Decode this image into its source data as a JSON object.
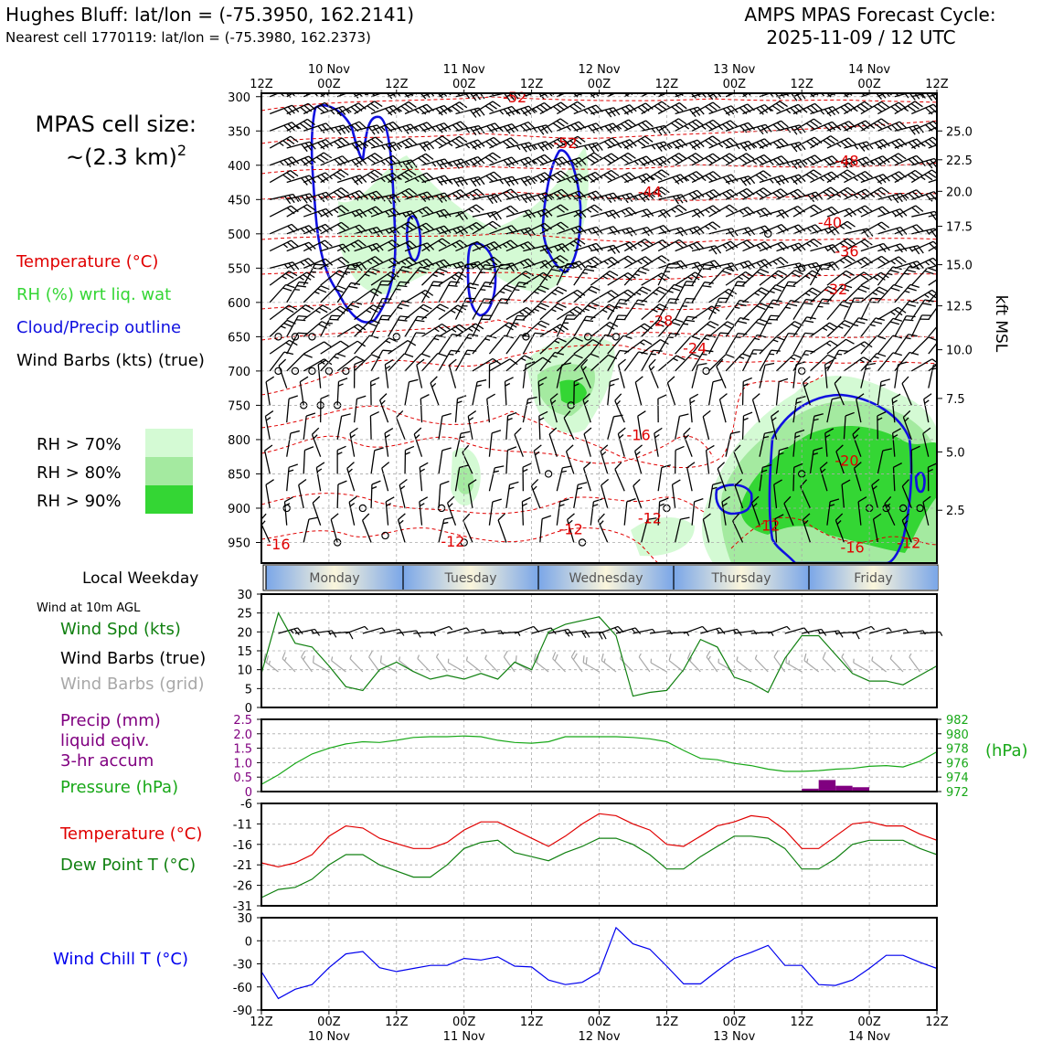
{
  "header": {
    "station_line": "Hughes Bluff: lat/lon = (-75.3950, 162.2141)",
    "cell_line": "Nearest cell 1770119: lat/lon = (-75.3980, 162.2373)",
    "forecast_title": "AMPS MPAS Forecast Cycle:",
    "forecast_time": "2025-11-09 / 12 UTC"
  },
  "sidebar": {
    "cell_size_label": "MPAS cell size:",
    "cell_size_value": "~(2.3 km)",
    "cell_size_exp": "2",
    "legend_temperature": "Temperature (°C)",
    "legend_rh": "RH (%) wrt liq. wat",
    "legend_cloud": "Cloud/Precip outline",
    "legend_wind": "Wind Barbs (kts) (true)",
    "rh_70": "RH > 70%",
    "rh_80": "RH > 80%",
    "rh_90": "RH > 90%",
    "local_weekday": "Local Weekday",
    "wind_10m": "Wind at 10m AGL",
    "wind_spd": "Wind Spd (kts)",
    "wind_barbs_true": "Wind Barbs (true)",
    "wind_barbs_grid": "Wind Barbs (grid)",
    "precip_1": "Precip (mm)",
    "precip_2": "liquid eqiv.",
    "precip_3": "3-hr accum",
    "pressure": "Pressure (hPa)",
    "temp": "Temperature (°C)",
    "dewpoint": "Dew Point T (°C)",
    "windchill": "Wind Chill T (°C)"
  },
  "colors": {
    "temperature": "#e00000",
    "rh70": "#d4fad4",
    "rh80": "#a4eaa0",
    "rh90": "#34d634",
    "cloud": "#1010e0",
    "pressure": "#18a818",
    "precip": "#800080",
    "dewpoint": "#108010",
    "windchill": "#0000ee",
    "grid_barb": "#a8a8a8"
  },
  "time_axis": {
    "hours_from_start": [
      0,
      12,
      24,
      36,
      48,
      60,
      72,
      84,
      96,
      108,
      120
    ],
    "top_hour_labels": [
      "12Z",
      "00Z",
      "12Z",
      "00Z",
      "12Z",
      "00Z",
      "12Z",
      "00Z",
      "12Z",
      "00Z",
      "12Z"
    ],
    "bottom_hour_labels": [
      "12Z",
      "00Z",
      "12Z",
      "00Z",
      "12Z",
      "00Z",
      "12Z",
      "00Z",
      "12Z",
      "00Z",
      "12Z"
    ],
    "date_labels": [
      {
        "h": 12,
        "label": "10 Nov"
      },
      {
        "h": 36,
        "label": "11 Nov"
      },
      {
        "h": 60,
        "label": "12 Nov"
      },
      {
        "h": 84,
        "label": "13 Nov"
      },
      {
        "h": 108,
        "label": "14 Nov"
      }
    ]
  },
  "weekday_bar": [
    "Monday",
    "Tuesday",
    "Wednesday",
    "Thursday",
    "Friday"
  ],
  "chart_data": [
    {
      "type": "heatmap",
      "name": "cross-section",
      "pressure_axis": {
        "ticks": [
          300,
          350,
          400,
          450,
          500,
          550,
          600,
          650,
          700,
          750,
          800,
          850,
          900,
          950
        ],
        "range": [
          295,
          980
        ]
      },
      "kft_axis": {
        "label": "kft MSL",
        "ticks": [
          {
            "p": 350,
            "label": "25.0"
          },
          {
            "p": 392,
            "label": "22.5"
          },
          {
            "p": 438,
            "label": "20.0"
          },
          {
            "p": 489,
            "label": "17.5"
          },
          {
            "p": 545,
            "label": "15.0"
          },
          {
            "p": 605,
            "label": "12.5"
          },
          {
            "p": 669,
            "label": "10.0"
          },
          {
            "p": 740,
            "label": "7.5"
          },
          {
            "p": 818,
            "label": "5.0"
          },
          {
            "p": 903,
            "label": "2.5"
          }
        ]
      },
      "temperature_labels": [
        {
          "h": 45,
          "p": 300,
          "v": "-52"
        },
        {
          "h": 54,
          "p": 367,
          "v": "-52"
        },
        {
          "h": 104,
          "p": 393,
          "v": "-48"
        },
        {
          "h": 69,
          "p": 438,
          "v": "-44"
        },
        {
          "h": 101,
          "p": 483,
          "v": "-40"
        },
        {
          "h": 104,
          "p": 525,
          "v": "-36"
        },
        {
          "h": 102,
          "p": 580,
          "v": "-32"
        },
        {
          "h": 71,
          "p": 626,
          "v": "-28"
        },
        {
          "h": 77,
          "p": 666,
          "v": "-24"
        },
        {
          "h": 55,
          "p": 930,
          "v": "-12"
        },
        {
          "h": 34,
          "p": 948,
          "v": "-12"
        },
        {
          "h": 69,
          "p": 914,
          "v": "-12"
        },
        {
          "h": 90,
          "p": 925,
          "v": "-12"
        },
        {
          "h": 67,
          "p": 793,
          "v": "-16"
        },
        {
          "h": 3,
          "p": 952,
          "v": "-16"
        },
        {
          "h": 105,
          "p": 957,
          "v": "-16"
        },
        {
          "h": 115,
          "p": 950,
          "v": "-12"
        },
        {
          "h": 104,
          "p": 830,
          "v": "-20"
        }
      ]
    },
    {
      "type": "line",
      "name": "wind-speed",
      "title": "Wind Spd (kts)",
      "x": [
        0,
        3,
        6,
        9,
        12,
        15,
        18,
        21,
        24,
        27,
        30,
        33,
        36,
        39,
        42,
        45,
        48,
        51,
        54,
        57,
        60,
        63,
        66,
        69,
        72,
        75,
        78,
        81,
        84,
        87,
        90,
        93,
        96,
        99,
        102,
        105,
        108,
        111,
        114,
        117,
        120
      ],
      "values": [
        9,
        25,
        17,
        16,
        11,
        5.5,
        4.5,
        10,
        12,
        9.5,
        7.5,
        8.5,
        7.5,
        9,
        7.5,
        12,
        10,
        20,
        22,
        23,
        24,
        19,
        3,
        4,
        4.5,
        10,
        18,
        16,
        8,
        6.5,
        4,
        13,
        19,
        19,
        14,
        9,
        7,
        7,
        6,
        8.5,
        11
      ],
      "ylim": [
        0,
        30
      ],
      "yticks": [
        0,
        5,
        10,
        15,
        20,
        25,
        30
      ]
    },
    {
      "type": "line",
      "name": "pressure",
      "title": "Pressure (hPa)",
      "x": [
        0,
        3,
        6,
        9,
        12,
        15,
        18,
        21,
        24,
        27,
        30,
        33,
        36,
        39,
        42,
        45,
        48,
        51,
        54,
        57,
        60,
        63,
        66,
        69,
        72,
        75,
        78,
        81,
        84,
        87,
        90,
        93,
        96,
        99,
        102,
        105,
        108,
        111,
        114,
        117,
        120
      ],
      "values": [
        973.0,
        974.3,
        975.9,
        977.2,
        978.0,
        978.6,
        978.9,
        978.8,
        979.1,
        979.5,
        979.6,
        979.6,
        979.7,
        979.6,
        979.1,
        978.8,
        978.7,
        978.9,
        979.6,
        979.6,
        979.6,
        979.6,
        979.5,
        979.3,
        978.9,
        977.7,
        976.6,
        976.4,
        975.9,
        975.6,
        975.1,
        974.8,
        974.8,
        974.9,
        975.1,
        975.2,
        975.5,
        975.6,
        975.4,
        976.2,
        977.5
      ],
      "ylim": [
        972,
        982
      ],
      "yticks": [
        972,
        974,
        976,
        978,
        980,
        982
      ]
    },
    {
      "type": "bar",
      "name": "precipitation",
      "title": "Precip (mm)",
      "bars": [
        {
          "h0": 96,
          "h1": 99,
          "v": 0.1
        },
        {
          "h0": 99,
          "h1": 102,
          "v": 0.4
        },
        {
          "h0": 102,
          "h1": 105,
          "v": 0.2
        },
        {
          "h0": 105,
          "h1": 108,
          "v": 0.15
        }
      ],
      "ylim": [
        0,
        2.5
      ],
      "yticks": [
        "0",
        "0.5",
        "1.0",
        "1.5",
        "2.0",
        "2.5"
      ]
    },
    {
      "type": "line",
      "name": "temperature-dewpoint",
      "title": "Temperature (°C)",
      "x": [
        0,
        3,
        6,
        9,
        12,
        15,
        18,
        21,
        24,
        27,
        30,
        33,
        36,
        39,
        42,
        45,
        48,
        51,
        54,
        57,
        60,
        63,
        66,
        69,
        72,
        75,
        78,
        81,
        84,
        87,
        90,
        93,
        96,
        99,
        102,
        105,
        108,
        111,
        114,
        117,
        120
      ],
      "series": [
        {
          "name": "Temperature (°C)",
          "values": [
            -20.5,
            -21.5,
            -20.5,
            -18.5,
            -14,
            -11.5,
            -12,
            -14.5,
            -15.8,
            -17,
            -17,
            -15.5,
            -12.5,
            -10.5,
            -10.5,
            -12.5,
            -14.5,
            -16.5,
            -14,
            -11,
            -8.5,
            -9,
            -11,
            -12.5,
            -16,
            -16.5,
            -14,
            -11.5,
            -10.5,
            -9,
            -9.5,
            -12.5,
            -17,
            -17,
            -14,
            -11,
            -10.5,
            -11.5,
            -11.5,
            -13.5,
            -15
          ]
        },
        {
          "name": "Dew Point T (°C)",
          "values": [
            -29,
            -27,
            -26.5,
            -24.5,
            -21,
            -18.5,
            -18.5,
            -21,
            -22.5,
            -24,
            -24,
            -21,
            -17,
            -15.5,
            -15,
            -18,
            -19,
            -20,
            -18,
            -16.5,
            -14.5,
            -14.5,
            -16,
            -18.5,
            -22,
            -22,
            -19,
            -16.5,
            -14,
            -14,
            -14.5,
            -17,
            -22,
            -22,
            -19.5,
            -16,
            -15,
            -15,
            -15,
            -17,
            -18.5
          ]
        }
      ],
      "ylim": [
        -31,
        -6
      ],
      "yticks": [
        -31,
        -26,
        -21,
        -16,
        -11,
        -6
      ]
    },
    {
      "type": "line",
      "name": "wind-chill",
      "title": "Wind Chill T (°C)",
      "x": [
        0,
        3,
        6,
        9,
        12,
        15,
        18,
        21,
        24,
        27,
        30,
        33,
        36,
        39,
        42,
        45,
        48,
        51,
        54,
        57,
        60,
        63,
        66,
        69,
        72,
        75,
        78,
        81,
        84,
        87,
        90,
        93,
        96,
        99,
        102,
        105,
        108,
        111,
        114,
        117,
        120
      ],
      "values": [
        -40,
        -75,
        -63,
        -57,
        -35,
        -17,
        -14,
        -35,
        -40,
        -36,
        -32,
        -32,
        -23,
        -25,
        -21,
        -33,
        -34,
        -51,
        -57,
        -54,
        -41,
        17,
        -4,
        -11,
        -33,
        -56,
        -56,
        -39,
        -23,
        -15,
        -6,
        -32,
        -32,
        -57,
        -58,
        -51,
        -36,
        -19,
        -19,
        -28,
        -36
      ],
      "ylim": [
        -90,
        30
      ],
      "yticks": [
        -90,
        -60,
        -30,
        0,
        30
      ]
    }
  ]
}
